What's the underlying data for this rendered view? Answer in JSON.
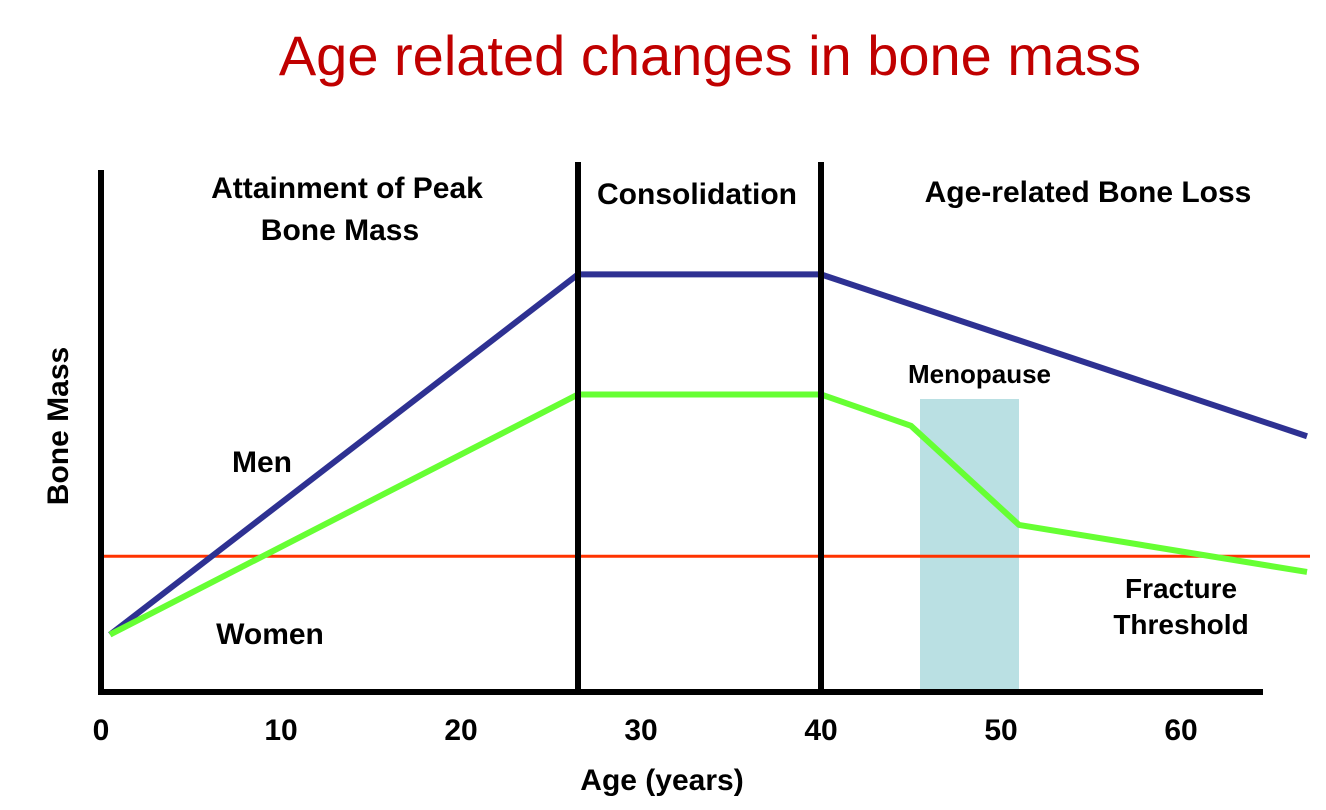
{
  "chart_data": {
    "type": "line",
    "title": "Age related changes in bone mass",
    "xlabel": "Age (years)",
    "ylabel": "Bone Mass",
    "x_ticks": [
      0,
      10,
      20,
      30,
      40,
      50,
      60
    ],
    "xlim": [
      0,
      67
    ],
    "ylim": [
      0,
      100
    ],
    "series": [
      {
        "name": "Men",
        "color": "#2e3192",
        "points": [
          [
            0.5,
            11
          ],
          [
            26.5,
            80
          ],
          [
            40,
            80
          ],
          [
            67,
            49
          ]
        ]
      },
      {
        "name": "Women",
        "color": "#66ff33",
        "points": [
          [
            0.5,
            11
          ],
          [
            26.5,
            57
          ],
          [
            40,
            57
          ],
          [
            45,
            51
          ],
          [
            51,
            32
          ],
          [
            67,
            23
          ]
        ]
      }
    ],
    "threshold": {
      "label_line1": "Fracture",
      "label_line2": "Threshold",
      "value": 26,
      "color": "#ff3300"
    },
    "phases": [
      {
        "line1": "Attainment of Peak",
        "line2": "Bone Mass",
        "start": 0,
        "end": 26.5
      },
      {
        "line1": "Consolidation",
        "line2": "",
        "start": 26.5,
        "end": 40
      },
      {
        "line1": "Age-related Bone Loss",
        "line2": "",
        "start": 40,
        "end": 67
      }
    ],
    "shaded_band": {
      "label": "Menopause",
      "start": 45.5,
      "end": 51,
      "color": "#bae0e3"
    },
    "grid": false,
    "legend": "inline labels"
  }
}
